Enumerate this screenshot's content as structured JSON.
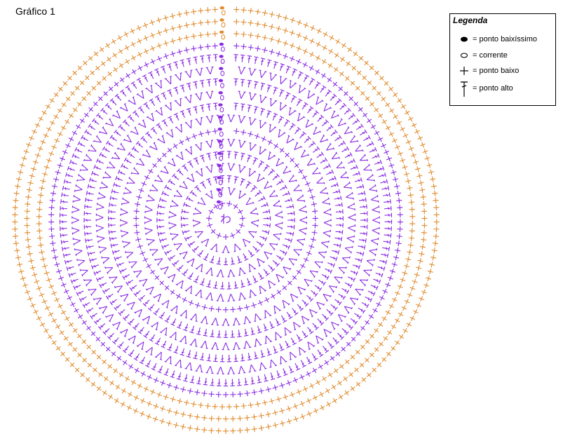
{
  "title": "Gráfico 1",
  "legend": {
    "title": "Legenda",
    "items": [
      {
        "symbol": "oval-filled",
        "label": "= ponto baixíssimo"
      },
      {
        "symbol": "oval-outline",
        "label": "= corrente"
      },
      {
        "symbol": "plus",
        "label": "= ponto baixo"
      },
      {
        "symbol": "tall-t",
        "label": "= ponto alto"
      }
    ]
  },
  "center_label": "わ",
  "colors": {
    "purple": "#8a2be2",
    "orange": "#e08a2c",
    "text": "#000000"
  },
  "rounds": [
    {
      "symbol": "plus",
      "color": "purple"
    },
    {
      "symbol": "v",
      "color": "purple"
    },
    {
      "symbol": "t",
      "color": "purple"
    },
    {
      "symbol": "v",
      "color": "purple"
    },
    {
      "symbol": "t",
      "color": "purple"
    },
    {
      "symbol": "v",
      "color": "purple"
    },
    {
      "symbol": "plus",
      "color": "purple"
    },
    {
      "symbol": "v",
      "color": "purple"
    },
    {
      "symbol": "t",
      "color": "purple"
    },
    {
      "symbol": "v",
      "color": "purple"
    },
    {
      "symbol": "t",
      "color": "purple"
    },
    {
      "symbol": "v",
      "color": "purple"
    },
    {
      "symbol": "t",
      "color": "purple"
    },
    {
      "symbol": "plus",
      "color": "purple"
    },
    {
      "symbol": "plus",
      "color": "orange"
    },
    {
      "symbol": "plus",
      "color": "orange"
    },
    {
      "symbol": "plus",
      "color": "orange"
    }
  ]
}
